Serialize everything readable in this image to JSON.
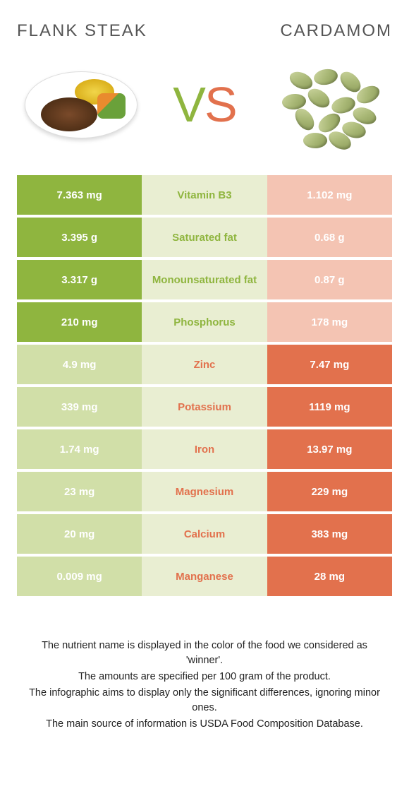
{
  "colors": {
    "left_strong": "#8fb53f",
    "left_soft": "#d1dfa8",
    "mid": "#e9eed2",
    "right_strong": "#e2714d",
    "right_soft": "#f4c4b3",
    "mid_text_left": "#8fb53f",
    "mid_text_right": "#e2714d"
  },
  "header": {
    "left": "FLANK STEAK",
    "right": "CARDAMOM",
    "vs_v": "V",
    "vs_s": "S"
  },
  "rows": [
    {
      "left": "7.363 mg",
      "label": "Vitamin B3",
      "right": "1.102 mg",
      "winner": "left"
    },
    {
      "left": "3.395 g",
      "label": "Saturated fat",
      "right": "0.68 g",
      "winner": "left"
    },
    {
      "left": "3.317 g",
      "label": "Monounsaturated fat",
      "right": "0.87 g",
      "winner": "left"
    },
    {
      "left": "210 mg",
      "label": "Phosphorus",
      "right": "178 mg",
      "winner": "left"
    },
    {
      "left": "4.9 mg",
      "label": "Zinc",
      "right": "7.47 mg",
      "winner": "right"
    },
    {
      "left": "339 mg",
      "label": "Potassium",
      "right": "1119 mg",
      "winner": "right"
    },
    {
      "left": "1.74 mg",
      "label": "Iron",
      "right": "13.97 mg",
      "winner": "right"
    },
    {
      "left": "23 mg",
      "label": "Magnesium",
      "right": "229 mg",
      "winner": "right"
    },
    {
      "left": "20 mg",
      "label": "Calcium",
      "right": "383 mg",
      "winner": "right"
    },
    {
      "left": "0.009 mg",
      "label": "Manganese",
      "right": "28 mg",
      "winner": "right"
    }
  ],
  "footnotes": [
    "The nutrient name is displayed in the color of the food we considered as 'winner'.",
    "The amounts are specified per 100 gram of the product.",
    "The infographic aims to display only the significant differences, ignoring minor ones.",
    "The main source of information is USDA Food Composition Database."
  ]
}
